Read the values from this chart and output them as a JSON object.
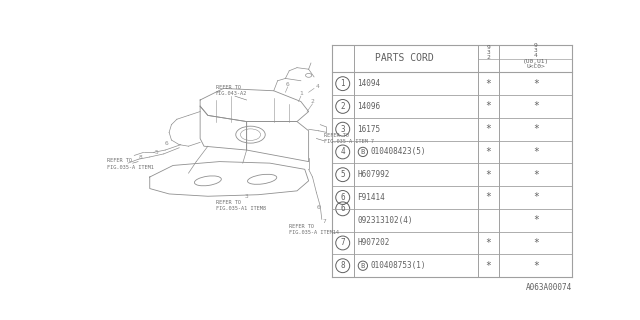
{
  "bg_color": "#ffffff",
  "fig_width": 6.4,
  "fig_height": 3.2,
  "parts_cord_label": "PARTS CORD",
  "rows": [
    {
      "num": "1",
      "part": "14094",
      "c1": "*",
      "c2": "*",
      "has_B": false,
      "is_sub": false
    },
    {
      "num": "2",
      "part": "14096",
      "c1": "*",
      "c2": "*",
      "has_B": false,
      "is_sub": false
    },
    {
      "num": "3",
      "part": "16175",
      "c1": "*",
      "c2": "*",
      "has_B": false,
      "is_sub": false
    },
    {
      "num": "4",
      "part": "010408423(5)",
      "c1": "*",
      "c2": "*",
      "has_B": true,
      "is_sub": false
    },
    {
      "num": "5",
      "part": "H607992",
      "c1": "*",
      "c2": "*",
      "has_B": false,
      "is_sub": false
    },
    {
      "num": "6",
      "part": "F91414",
      "c1": "*",
      "c2": "*",
      "has_B": false,
      "is_sub": false
    },
    {
      "num": "",
      "part": "092313102(4)",
      "c1": "",
      "c2": "*",
      "has_B": false,
      "is_sub": true
    },
    {
      "num": "7",
      "part": "H907202",
      "c1": "*",
      "c2": "*",
      "has_B": false,
      "is_sub": false
    },
    {
      "num": "8",
      "part": "010408753(1)",
      "c1": "*",
      "c2": "*",
      "has_B": true,
      "is_sub": false
    }
  ],
  "footer_text": "A063A00074",
  "line_color": "#a0a0a0",
  "text_color": "#606060"
}
